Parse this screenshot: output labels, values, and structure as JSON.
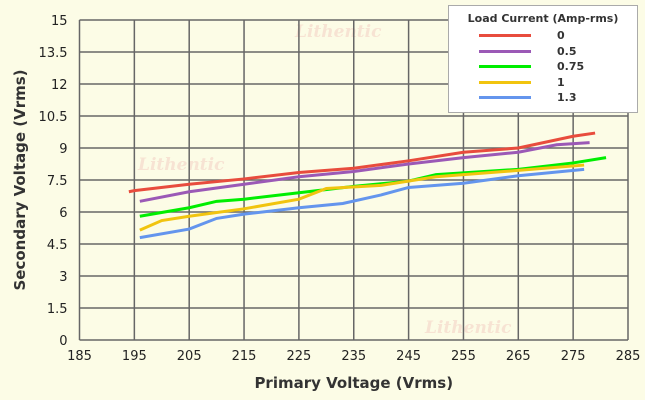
{
  "chart_data": {
    "type": "line",
    "xlabel": "Primary Voltage (Vrms)",
    "ylabel": "Secondary Voltage (Vrms)",
    "xlim": [
      185,
      285
    ],
    "ylim": [
      0,
      15
    ],
    "xticks": [
      "185",
      "195",
      "205",
      "215",
      "225",
      "235",
      "245",
      "255",
      "265",
      "275",
      "285"
    ],
    "yticks": [
      "0",
      "1.5",
      "3",
      "4.5",
      "6",
      "7.5",
      "9",
      "10.5",
      "12",
      "13.5",
      "15"
    ],
    "grid": true,
    "legend_title": "Load Current (Amp-rms)",
    "legend_position": "top-right",
    "watermark": "Lithentic",
    "series": [
      {
        "name": "0",
        "color": "#e84c3d",
        "points": [
          [
            194,
            6.95
          ],
          [
            195,
            7.0
          ],
          [
            205,
            7.3
          ],
          [
            215,
            7.55
          ],
          [
            225,
            7.85
          ],
          [
            235,
            8.05
          ],
          [
            245,
            8.4
          ],
          [
            255,
            8.8
          ],
          [
            265,
            9.0
          ],
          [
            275,
            9.55
          ],
          [
            279,
            9.7
          ]
        ]
      },
      {
        "name": "0.5",
        "color": "#9b59b6",
        "points": [
          [
            196,
            6.5
          ],
          [
            205,
            6.95
          ],
          [
            215,
            7.3
          ],
          [
            225,
            7.65
          ],
          [
            235,
            7.9
          ],
          [
            245,
            8.25
          ],
          [
            255,
            8.55
          ],
          [
            265,
            8.8
          ],
          [
            272,
            9.15
          ],
          [
            278,
            9.25
          ]
        ]
      },
      {
        "name": "0.75",
        "color": "#00ee00",
        "points": [
          [
            196,
            5.8
          ],
          [
            205,
            6.2
          ],
          [
            210,
            6.5
          ],
          [
            215,
            6.6
          ],
          [
            225,
            6.9
          ],
          [
            235,
            7.2
          ],
          [
            245,
            7.45
          ],
          [
            250,
            7.75
          ],
          [
            265,
            8.0
          ],
          [
            275,
            8.3
          ],
          [
            281,
            8.55
          ]
        ]
      },
      {
        "name": "1",
        "color": "#f1c40f",
        "points": [
          [
            196,
            5.15
          ],
          [
            200,
            5.6
          ],
          [
            205,
            5.8
          ],
          [
            215,
            6.15
          ],
          [
            225,
            6.6
          ],
          [
            230,
            7.1
          ],
          [
            240,
            7.25
          ],
          [
            250,
            7.65
          ],
          [
            265,
            7.95
          ],
          [
            277,
            8.2
          ]
        ]
      },
      {
        "name": "1.3",
        "color": "#6495ed",
        "points": [
          [
            196,
            4.8
          ],
          [
            205,
            5.2
          ],
          [
            210,
            5.7
          ],
          [
            215,
            5.9
          ],
          [
            225,
            6.2
          ],
          [
            233,
            6.4
          ],
          [
            240,
            6.8
          ],
          [
            245,
            7.15
          ],
          [
            255,
            7.35
          ],
          [
            265,
            7.7
          ],
          [
            277,
            8.0
          ]
        ]
      }
    ]
  }
}
